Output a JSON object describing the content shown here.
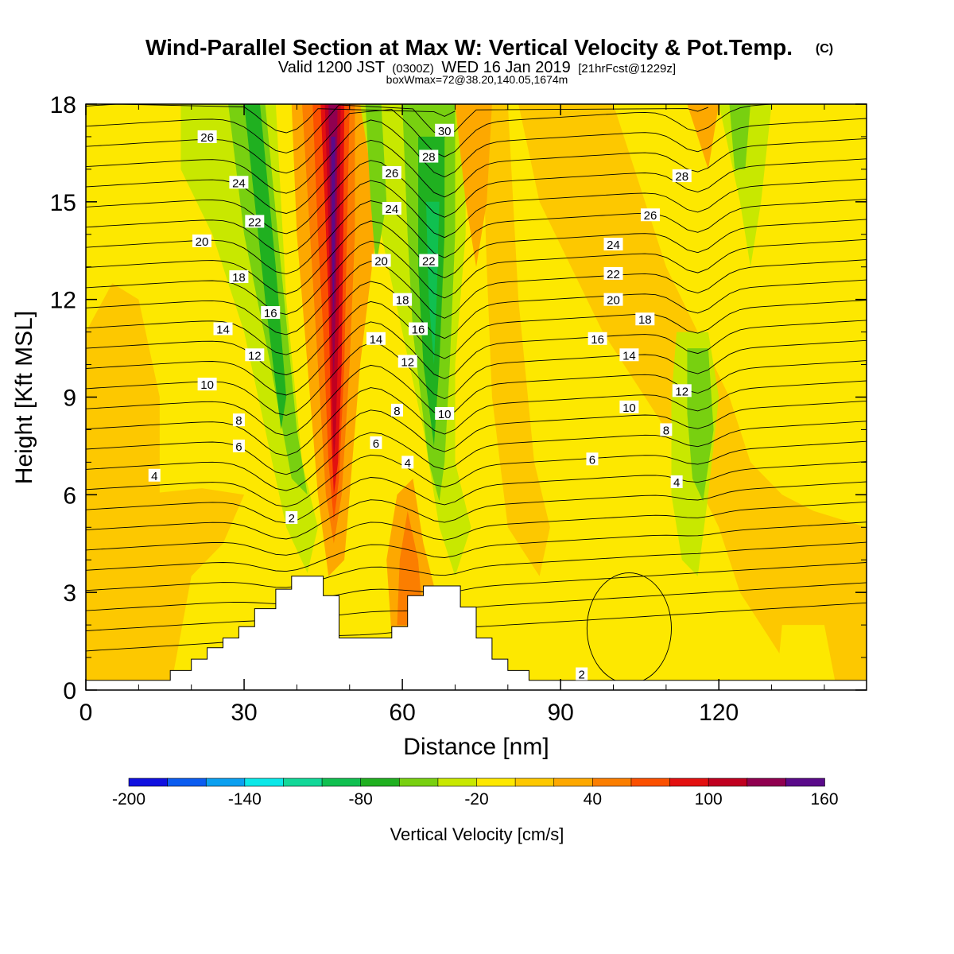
{
  "header": {
    "title": "Wind-Parallel Section at Max W: Vertical Velocity & Pot.Temp.",
    "copyright": "(C)",
    "valid_main": "Valid 1200 JST",
    "valid_z": "(0300Z)",
    "valid_date": "WED 16 Jan 2019",
    "forecast": "[21hrFcst@1229z]",
    "box": "boxWmax=72@38.20,140.05,1674m"
  },
  "chart_data": {
    "type": "heatmap",
    "xlabel": "Distance [nm]",
    "ylabel": "Height [Kft MSL]",
    "xlim": [
      0,
      148
    ],
    "ylim": [
      0,
      18
    ],
    "x_ticks": [
      0,
      30,
      60,
      90,
      120
    ],
    "y_ticks": [
      0,
      3,
      6,
      9,
      12,
      15,
      18
    ],
    "colorbar": {
      "label": "Vertical Velocity [cm/s]",
      "tick_labels": [
        "-200",
        "-140",
        "-80",
        "-20",
        "40",
        "100",
        "160"
      ],
      "tick_values": [
        -200,
        -140,
        -80,
        -20,
        40,
        100,
        160
      ],
      "colors": [
        "#1010e0",
        "#0b5cf0",
        "#0ba0f0",
        "#0be8e8",
        "#12d898",
        "#10c050",
        "#20b020",
        "#78d010",
        "#c8e800",
        "#fde800",
        "#fdc800",
        "#fda800",
        "#fb7e00",
        "#fb5000",
        "#e31010",
        "#c00020",
        "#900050",
        "#5a0a8a"
      ]
    },
    "terrain_kft": [
      {
        "x": 0,
        "h": 0.3
      },
      {
        "x": 16,
        "h": 0.3
      },
      {
        "x": 16,
        "h": 0.6
      },
      {
        "x": 20,
        "h": 0.6
      },
      {
        "x": 20,
        "h": 0.95
      },
      {
        "x": 23,
        "h": 0.95
      },
      {
        "x": 23,
        "h": 1.3
      },
      {
        "x": 26,
        "h": 1.3
      },
      {
        "x": 26,
        "h": 1.6
      },
      {
        "x": 29,
        "h": 1.6
      },
      {
        "x": 29,
        "h": 1.95
      },
      {
        "x": 32,
        "h": 1.95
      },
      {
        "x": 32,
        "h": 2.5
      },
      {
        "x": 36,
        "h": 2.5
      },
      {
        "x": 36,
        "h": 3.1
      },
      {
        "x": 39,
        "h": 3.1
      },
      {
        "x": 39,
        "h": 3.5
      },
      {
        "x": 45,
        "h": 3.5
      },
      {
        "x": 45,
        "h": 2.9
      },
      {
        "x": 48,
        "h": 2.9
      },
      {
        "x": 48,
        "h": 1.6
      },
      {
        "x": 58,
        "h": 1.6
      },
      {
        "x": 58,
        "h": 1.95
      },
      {
        "x": 61,
        "h": 1.95
      },
      {
        "x": 61,
        "h": 2.9
      },
      {
        "x": 64,
        "h": 2.9
      },
      {
        "x": 64,
        "h": 3.2
      },
      {
        "x": 71,
        "h": 3.2
      },
      {
        "x": 71,
        "h": 2.55
      },
      {
        "x": 74,
        "h": 2.55
      },
      {
        "x": 74,
        "h": 1.6
      },
      {
        "x": 77,
        "h": 1.6
      },
      {
        "x": 77,
        "h": 0.95
      },
      {
        "x": 80,
        "h": 0.95
      },
      {
        "x": 80,
        "h": 0.6
      },
      {
        "x": 84,
        "h": 0.6
      },
      {
        "x": 84,
        "h": 0.3
      },
      {
        "x": 148,
        "h": 0.3
      }
    ],
    "potential_temperature_labels": [
      {
        "v": "26",
        "x": 23,
        "y": 17.0
      },
      {
        "v": "24",
        "x": 29,
        "y": 15.6
      },
      {
        "v": "22",
        "x": 32,
        "y": 14.4
      },
      {
        "v": "20",
        "x": 22,
        "y": 13.8
      },
      {
        "v": "18",
        "x": 29,
        "y": 12.7
      },
      {
        "v": "16",
        "x": 35,
        "y": 11.6
      },
      {
        "v": "14",
        "x": 26,
        "y": 11.1
      },
      {
        "v": "12",
        "x": 32,
        "y": 10.3
      },
      {
        "v": "10",
        "x": 23,
        "y": 9.4
      },
      {
        "v": "8",
        "x": 29,
        "y": 8.3
      },
      {
        "v": "6",
        "x": 29,
        "y": 7.5
      },
      {
        "v": "4",
        "x": 13,
        "y": 6.6
      },
      {
        "v": "2",
        "x": 39,
        "y": 5.3
      },
      {
        "v": "30",
        "x": 68,
        "y": 17.2
      },
      {
        "v": "28",
        "x": 65,
        "y": 16.4
      },
      {
        "v": "26",
        "x": 58,
        "y": 15.9
      },
      {
        "v": "24",
        "x": 58,
        "y": 14.8
      },
      {
        "v": "22",
        "x": 65,
        "y": 13.2
      },
      {
        "v": "20",
        "x": 56,
        "y": 13.2
      },
      {
        "v": "18",
        "x": 60,
        "y": 12.0
      },
      {
        "v": "16",
        "x": 63,
        "y": 11.1
      },
      {
        "v": "14",
        "x": 55,
        "y": 10.8
      },
      {
        "v": "12",
        "x": 61,
        "y": 10.1
      },
      {
        "v": "10",
        "x": 68,
        "y": 8.5
      },
      {
        "v": "8",
        "x": 59,
        "y": 8.6
      },
      {
        "v": "6",
        "x": 55,
        "y": 7.6
      },
      {
        "v": "4",
        "x": 61,
        "y": 7.0
      },
      {
        "v": "28",
        "x": 113,
        "y": 15.8
      },
      {
        "v": "26",
        "x": 107,
        "y": 14.6
      },
      {
        "v": "24",
        "x": 100,
        "y": 13.7
      },
      {
        "v": "22",
        "x": 100,
        "y": 12.8
      },
      {
        "v": "20",
        "x": 100,
        "y": 12.0
      },
      {
        "v": "18",
        "x": 106,
        "y": 11.4
      },
      {
        "v": "16",
        "x": 97,
        "y": 10.8
      },
      {
        "v": "14",
        "x": 103,
        "y": 10.3
      },
      {
        "v": "12",
        "x": 113,
        "y": 9.2
      },
      {
        "v": "10",
        "x": 103,
        "y": 8.7
      },
      {
        "v": "8",
        "x": 110,
        "y": 8.0
      },
      {
        "v": "6",
        "x": 96,
        "y": 7.1
      },
      {
        "v": "4",
        "x": 112,
        "y": 6.4
      },
      {
        "v": "2",
        "x": 94,
        "y": 0.5
      }
    ]
  }
}
